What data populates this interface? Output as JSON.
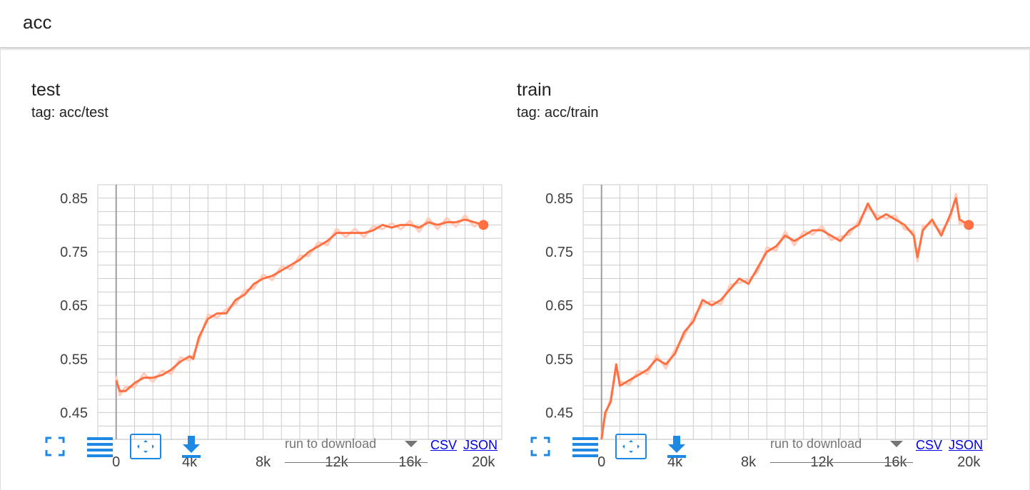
{
  "group": {
    "title": "acc"
  },
  "toolbar": {
    "run_select_placeholder": "run to download",
    "csv_label": "CSV",
    "json_label": "JSON",
    "icons": [
      "fullscreen-icon",
      "lines-icon",
      "fit-domain-icon",
      "download-icon"
    ]
  },
  "colors": {
    "series": "#ff7043",
    "series_faint": "#ffccbc",
    "accent": "#1e88e5",
    "grid": "#cccccc"
  },
  "charts": [
    {
      "title": "test",
      "tag": "tag: acc/test"
    },
    {
      "title": "train",
      "tag": "tag: acc/train"
    }
  ],
  "chart_data": [
    {
      "type": "line",
      "title": "test",
      "xlabel": "",
      "ylabel": "",
      "xlim": [
        -1000,
        21000
      ],
      "ylim": [
        0.4,
        0.875
      ],
      "x_ticks": [
        "0",
        "4k",
        "8k",
        "12k",
        "16k",
        "20k"
      ],
      "x_tick_values": [
        0,
        4000,
        8000,
        12000,
        16000,
        20000
      ],
      "y_ticks": [
        "0.45",
        "0.55",
        "0.65",
        "0.75",
        "0.85"
      ],
      "y_tick_values": [
        0.45,
        0.55,
        0.65,
        0.75,
        0.85
      ],
      "grid": true,
      "series": [
        {
          "x": [
            0,
            200,
            500,
            1000,
            1500,
            2000,
            2500,
            3000,
            3500,
            4000,
            4200,
            4500,
            5000,
            5500,
            6000,
            6500,
            7000,
            7500,
            8000,
            8500,
            9000,
            9500,
            10000,
            10500,
            11000,
            11500,
            12000,
            12500,
            13000,
            13500,
            14000,
            14500,
            15000,
            15500,
            16000,
            16500,
            17000,
            17500,
            18000,
            18500,
            19000,
            19500,
            20000
          ],
          "y": [
            0.51,
            0.49,
            0.49,
            0.505,
            0.515,
            0.515,
            0.52,
            0.53,
            0.545,
            0.555,
            0.55,
            0.59,
            0.625,
            0.635,
            0.635,
            0.66,
            0.67,
            0.69,
            0.7,
            0.705,
            0.715,
            0.725,
            0.735,
            0.75,
            0.76,
            0.77,
            0.785,
            0.785,
            0.785,
            0.785,
            0.79,
            0.8,
            0.795,
            0.8,
            0.8,
            0.795,
            0.805,
            0.8,
            0.805,
            0.805,
            0.81,
            0.805,
            0.8
          ]
        }
      ]
    },
    {
      "type": "line",
      "title": "train",
      "xlabel": "",
      "ylabel": "",
      "xlim": [
        -1000,
        21000
      ],
      "ylim": [
        0.4,
        0.875
      ],
      "x_ticks": [
        "0",
        "4k",
        "8k",
        "12k",
        "16k",
        "20k"
      ],
      "x_tick_values": [
        0,
        4000,
        8000,
        12000,
        16000,
        20000
      ],
      "y_ticks": [
        "0.45",
        "0.55",
        "0.65",
        "0.75",
        "0.85"
      ],
      "y_tick_values": [
        0.45,
        0.55,
        0.65,
        0.75,
        0.85
      ],
      "grid": true,
      "series": [
        {
          "x": [
            0,
            200,
            500,
            800,
            1000,
            1500,
            2000,
            2500,
            3000,
            3500,
            4000,
            4500,
            5000,
            5500,
            6000,
            6500,
            7000,
            7500,
            8000,
            8500,
            9000,
            9500,
            10000,
            10500,
            11000,
            11500,
            12000,
            12500,
            13000,
            13500,
            14000,
            14500,
            15000,
            15500,
            16000,
            16500,
            17000,
            17200,
            17500,
            18000,
            18500,
            19000,
            19300,
            19500,
            20000
          ],
          "y": [
            0.4,
            0.45,
            0.47,
            0.54,
            0.5,
            0.51,
            0.52,
            0.53,
            0.55,
            0.54,
            0.56,
            0.6,
            0.62,
            0.66,
            0.65,
            0.66,
            0.68,
            0.7,
            0.69,
            0.72,
            0.75,
            0.76,
            0.78,
            0.77,
            0.78,
            0.79,
            0.79,
            0.78,
            0.77,
            0.79,
            0.8,
            0.84,
            0.81,
            0.82,
            0.81,
            0.8,
            0.78,
            0.74,
            0.79,
            0.81,
            0.78,
            0.82,
            0.85,
            0.81,
            0.8
          ]
        }
      ]
    }
  ]
}
